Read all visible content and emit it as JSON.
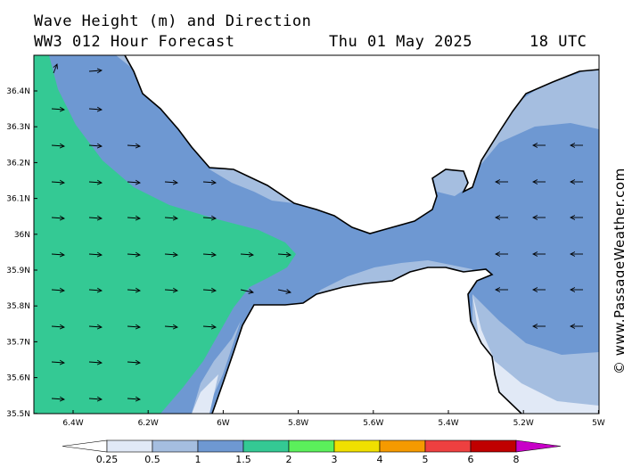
{
  "header": {
    "line1": "Wave Height (m) and Direction",
    "line2": "WW3 012 Hour Forecast",
    "date": "Thu 01 May 2025",
    "time": "18 UTC"
  },
  "watermark": "© www.PassageWeather.com",
  "map": {
    "lat_labels": [
      "36.4N",
      "36.3N",
      "36.2N",
      "36.1N",
      "36N",
      "35.9N",
      "35.8N",
      "35.7N",
      "35.6N",
      "35.5N"
    ],
    "lon_labels": [
      "6.4W",
      "6.2W",
      "6W",
      "5.8W",
      "5.6W",
      "5.4W",
      "5.2W",
      "5W"
    ],
    "colors": {
      "land": "#ffffff",
      "band_025": "#e1e9f6",
      "band_05": "#a5bee0",
      "band_1": "#6e98d2",
      "band_15": "#34c994",
      "coast": "#000000"
    }
  },
  "legend": {
    "labels": [
      "0.25",
      "0.5",
      "1",
      "1.5",
      "2",
      "3",
      "4",
      "5",
      "6",
      "8"
    ],
    "colors": [
      "#e1e9f6",
      "#a5bee0",
      "#6e98d2",
      "#34c994",
      "#5bf05b",
      "#f0e000",
      "#f59a00",
      "#ee4040",
      "#c00000",
      "#c800c8"
    ]
  }
}
